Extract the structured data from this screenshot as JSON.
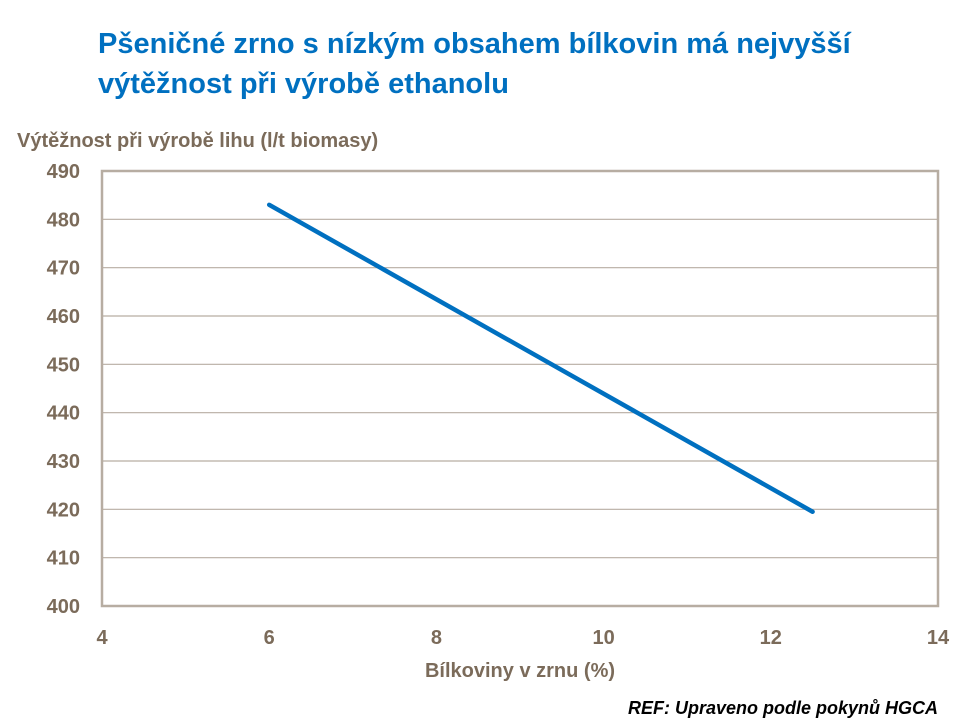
{
  "title": {
    "line1": "Pšeničné zrno s nízkým obsahem bílkovin má nejvyšší",
    "line2": "výtěžnost při výrobě ethanolu"
  },
  "reference": "REF: Upraveno podle pokynů HGCA",
  "colors": {
    "title": "#0070c0",
    "line": "#0070c0",
    "axis_text": "#7b6b5a",
    "grid": "#b7ada2"
  },
  "chart_data": {
    "type": "line",
    "title": "Pšeničné zrno s nízkým obsahem bílkovin má nejvyšší výtěžnost při výrobě ethanolu",
    "xlabel": "Bílkoviny v zrnu (%)",
    "ylabel": "Výtěžnost při výrobě lihu (l/t biomasy)",
    "xlim": [
      4,
      14
    ],
    "ylim": [
      400,
      490
    ],
    "x_ticks": [
      "4",
      "6",
      "8",
      "10",
      "12",
      "14"
    ],
    "y_ticks": [
      "490",
      "480",
      "470",
      "460",
      "450",
      "440",
      "430",
      "420",
      "410",
      "400"
    ],
    "grid": "horizontal",
    "legend": null,
    "series": [
      {
        "name": "Výtěžnost",
        "x": [
          6.0,
          12.5
        ],
        "y": [
          483,
          419.5
        ]
      }
    ]
  }
}
